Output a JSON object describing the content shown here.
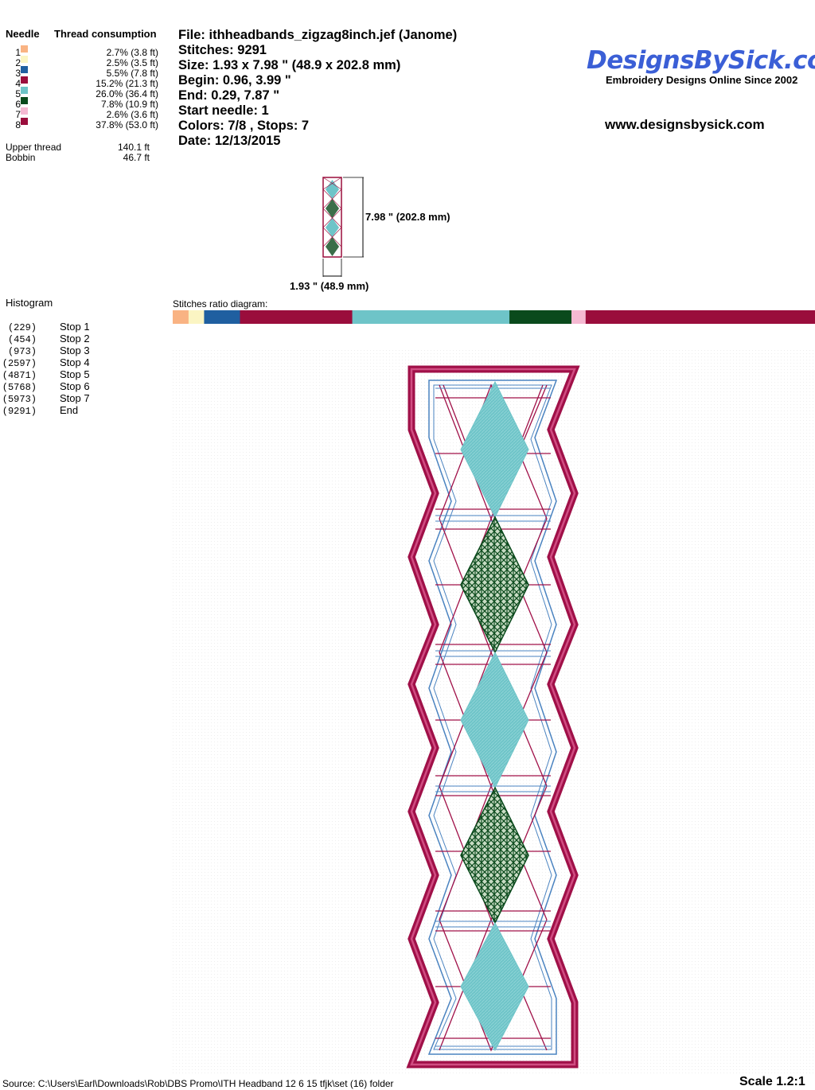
{
  "thread_table": {
    "needle_header": "Needle",
    "consumption_header": "Thread consumption",
    "rows": [
      {
        "needle": "1",
        "color": "#f9b383",
        "consumption": "2.7% (3.8 ft)"
      },
      {
        "needle": "2",
        "color": "#fbf5c3",
        "consumption": "2.5% (3.5 ft)"
      },
      {
        "needle": "3",
        "color": "#1f5fa0",
        "consumption": "5.5% (7.8 ft)"
      },
      {
        "needle": "4",
        "color": "#9a0d3c",
        "consumption": "15.2% (21.3 ft)"
      },
      {
        "needle": "5",
        "color": "#6ec4c8",
        "consumption": "26.0% (36.4 ft)"
      },
      {
        "needle": "6",
        "color": "#0a4a1c",
        "consumption": "7.8% (10.9 ft)"
      },
      {
        "needle": "7",
        "color": "#f5b9d2",
        "consumption": "2.6% (3.6 ft)"
      },
      {
        "needle": "8",
        "color": "#9a0d3c",
        "consumption": "37.8% (53.0 ft)"
      }
    ],
    "upper_thread_label": "Upper thread",
    "upper_thread_value": "140.1 ft",
    "bobbin_label": "Bobbin",
    "bobbin_value": "46.7 ft"
  },
  "file_info": {
    "file": "File: ithheadbands_zigzag8inch.jef  (Janome)",
    "stitches": "Stitches: 9291",
    "size": "Size: 1.93 x 7.98 \" (48.9 x 202.8 mm)",
    "begin": "Begin: 0.96, 3.99 \"",
    "end": "End: 0.29, 7.87 \"",
    "start_needle": "Start needle: 1",
    "colors_stops": "Colors: 7/8 , Stops: 7",
    "date": "Date: 12/13/2015"
  },
  "brand": {
    "logo_text": "DesignsBySick.com",
    "tagline": "Embroidery Designs Online Since 2002",
    "url": "www.designsbysick.com",
    "logo_color": "#3b5fd6"
  },
  "thumbnail": {
    "height_label": "7.98 \" (202.8 mm)",
    "width_label": "1.93 \" (48.9 mm)"
  },
  "histogram": {
    "title": "Histogram",
    "items": [
      {
        "count": "(229)",
        "label": "Stop 1"
      },
      {
        "count": "(454)",
        "label": "Stop 2"
      },
      {
        "count": "(973)",
        "label": "Stop 3"
      },
      {
        "count": "(2597)",
        "label": "Stop 4"
      },
      {
        "count": "(4871)",
        "label": "Stop 5"
      },
      {
        "count": "(5768)",
        "label": "Stop 6"
      },
      {
        "count": "(5973)",
        "label": "Stop 7"
      },
      {
        "count": "(9291)",
        "label": "End"
      }
    ]
  },
  "ratio_diagram": {
    "title": "Stitches ratio diagram:",
    "segments": [
      {
        "color": "#f9b383",
        "stitches": 229
      },
      {
        "color": "#fbf5c3",
        "stitches": 225
      },
      {
        "color": "#1f5fa0",
        "stitches": 519
      },
      {
        "color": "#9a0d3c",
        "stitches": 1624
      },
      {
        "color": "#6ec4c8",
        "stitches": 2274
      },
      {
        "color": "#0a4a1c",
        "stitches": 897
      },
      {
        "color": "#f5b9d2",
        "stitches": 205
      },
      {
        "color": "#9a0d3c",
        "stitches": 3318
      }
    ]
  },
  "footer": {
    "source": "Source: C:\\Users\\Earl\\Downloads\\Rob\\DBS Promo\\ITH Headband 12 6 15 tfjk\\set (16) folder",
    "scale": "Scale 1.2:1"
  }
}
